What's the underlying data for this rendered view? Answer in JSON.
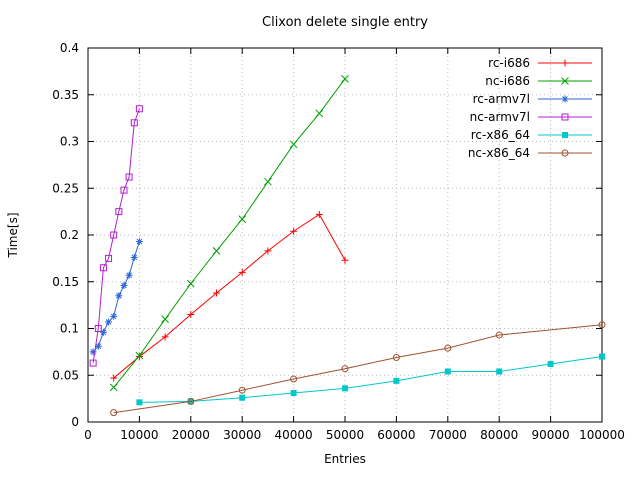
{
  "chart_data": {
    "type": "line",
    "title": "Clixon delete single entry",
    "xlabel": "Entries",
    "ylabel": "Time[s]",
    "xlim": [
      0,
      100000
    ],
    "ylim": [
      0,
      0.4
    ],
    "xticks": [
      0,
      10000,
      20000,
      30000,
      40000,
      50000,
      60000,
      70000,
      80000,
      90000,
      100000
    ],
    "yticks": [
      0,
      0.05,
      0.1,
      0.15,
      0.2,
      0.25,
      0.3,
      0.35,
      0.4
    ],
    "grid": true,
    "grid_color": "#bbbbbb",
    "legend_position": "top-right-inside",
    "series": [
      {
        "name": "rc-i686",
        "color": "#ff0000",
        "marker": "plus",
        "x": [
          5000,
          10000,
          15000,
          20000,
          25000,
          30000,
          35000,
          40000,
          45000,
          50000
        ],
        "y": [
          0.047,
          0.07,
          0.091,
          0.115,
          0.138,
          0.16,
          0.183,
          0.204,
          0.222,
          0.173
        ]
      },
      {
        "name": "nc-i686",
        "color": "#00a000",
        "marker": "cross",
        "x": [
          5000,
          10000,
          15000,
          20000,
          25000,
          30000,
          35000,
          40000,
          45000,
          50000
        ],
        "y": [
          0.037,
          0.071,
          0.11,
          0.148,
          0.183,
          0.217,
          0.257,
          0.297,
          0.33,
          0.367
        ]
      },
      {
        "name": "rc-armv7l",
        "color": "#2b65d9",
        "marker": "asterisk",
        "x": [
          1000,
          2000,
          3000,
          4000,
          5000,
          6000,
          7000,
          8000,
          9000,
          10000
        ],
        "y": [
          0.075,
          0.081,
          0.096,
          0.107,
          0.113,
          0.135,
          0.146,
          0.157,
          0.176,
          0.193
        ]
      },
      {
        "name": "nc-armv7l",
        "color": "#b020d0",
        "marker": "square-open",
        "x": [
          1000,
          2000,
          3000,
          4000,
          5000,
          6000,
          7000,
          8000,
          9000,
          10000
        ],
        "y": [
          0.063,
          0.1,
          0.165,
          0.175,
          0.2,
          0.225,
          0.248,
          0.262,
          0.32,
          0.335
        ]
      },
      {
        "name": "rc-x86_64",
        "color": "#00c8c8",
        "marker": "square-filled",
        "x": [
          10000,
          20000,
          30000,
          40000,
          50000,
          60000,
          70000,
          80000,
          90000,
          100000
        ],
        "y": [
          0.021,
          0.022,
          0.026,
          0.031,
          0.036,
          0.044,
          0.054,
          0.054,
          0.062,
          0.07
        ]
      },
      {
        "name": "nc-x86_64",
        "color": "#a0522d",
        "marker": "circle-open",
        "x": [
          5000,
          20000,
          30000,
          40000,
          50000,
          60000,
          70000,
          80000,
          100000
        ],
        "y": [
          0.01,
          0.022,
          0.034,
          0.046,
          0.057,
          0.069,
          0.079,
          0.093,
          0.104
        ]
      }
    ]
  }
}
